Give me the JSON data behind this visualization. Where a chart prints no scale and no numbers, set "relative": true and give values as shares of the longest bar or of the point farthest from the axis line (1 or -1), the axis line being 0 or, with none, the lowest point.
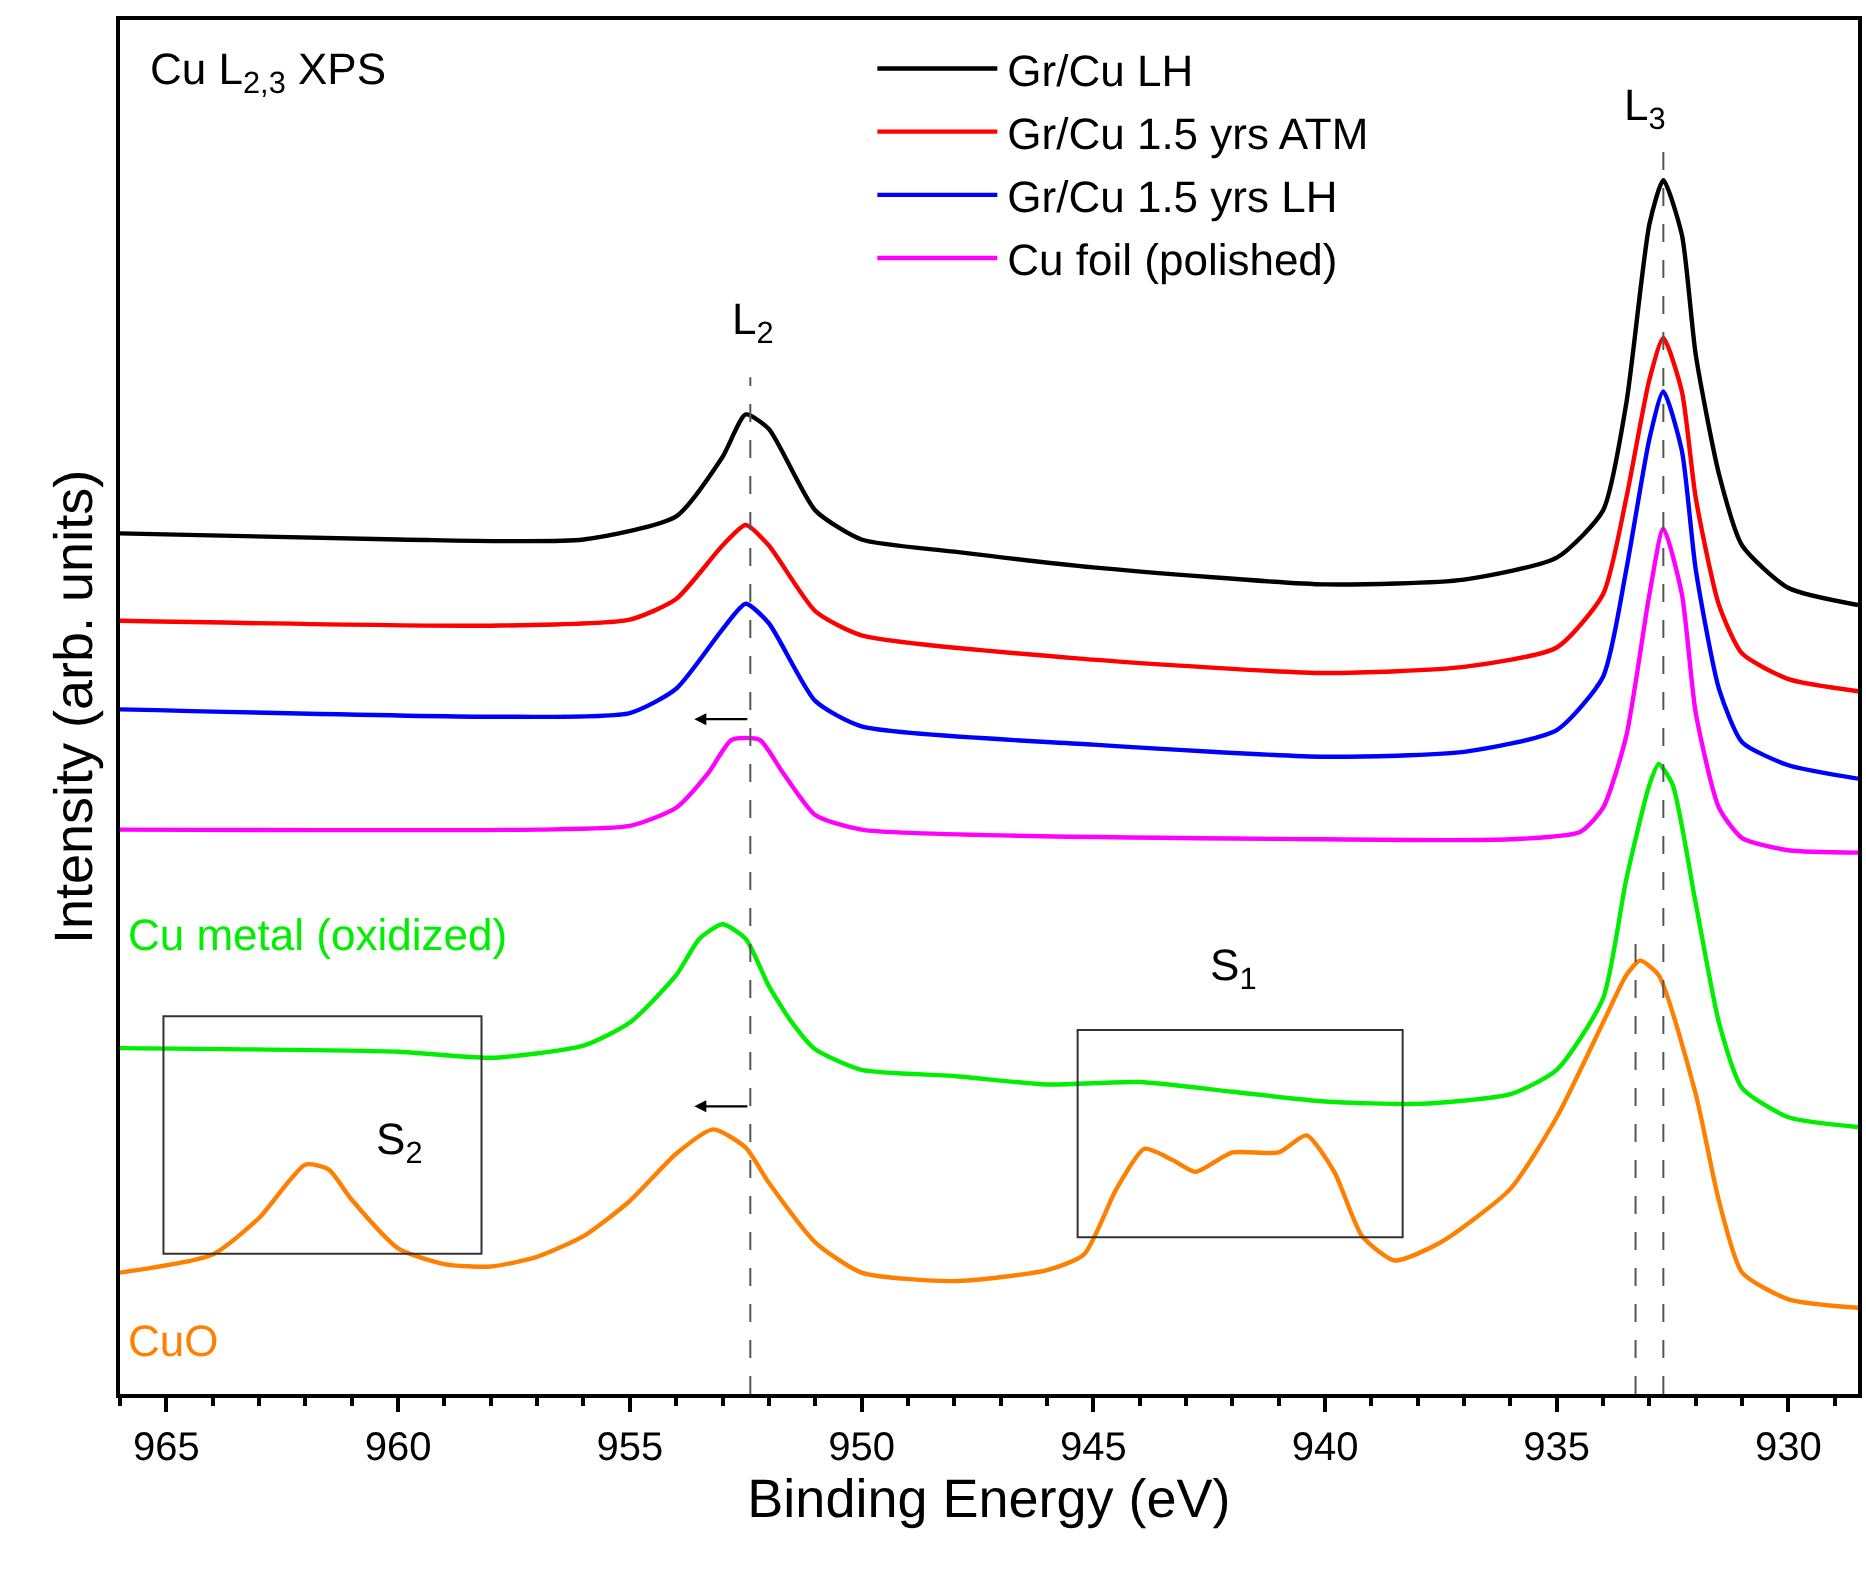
{
  "chart_data": {
    "type": "line",
    "relative": true,
    "xlabel": "Binding Energy (eV)",
    "ylabel": "Intensity (arb. units)",
    "xlim": [
      966,
      928.5
    ],
    "xticks": [
      965,
      960,
      955,
      950,
      945,
      940,
      935,
      930
    ],
    "tick_labels": "x",
    "legend": "top",
    "line_style": "solid",
    "marker": "none",
    "annotations": [
      "Cu L$_{2,3}$ XPS",
      "L$_{2}$",
      "L$_{3}$",
      "S$_{1}$",
      "S$_{2}$"
    ],
    "ref_lines": [
      {
        "axis": "x",
        "value": 952.4,
        "label": null,
        "color": "#555555",
        "line_style": "dashed"
      },
      {
        "axis": "x",
        "value": 932.7,
        "label": null,
        "color": "#555555",
        "line_style": "dashed"
      },
      {
        "axis": "x",
        "value": 933.3,
        "label": null,
        "color": "#555555",
        "line_style": "dashed"
      }
    ],
    "series": [
      {
        "name": "Gr/Cu LH",
        "color": "#000000",
        "x": [
          966,
          960,
          956,
          954,
          953,
          952.5,
          952,
          951,
          950,
          948,
          945,
          940,
          937,
          935,
          934,
          933.5,
          933,
          932.7,
          932.3,
          932,
          931.5,
          931,
          930,
          928.5
        ],
        "values": [
          0.709,
          0.704,
          0.704,
          0.723,
          0.772,
          0.807,
          0.795,
          0.728,
          0.704,
          0.694,
          0.681,
          0.667,
          0.671,
          0.689,
          0.728,
          0.816,
          0.964,
          1.0,
          0.955,
          0.856,
          0.758,
          0.699,
          0.664,
          0.65
        ]
      },
      {
        "name": "Gr/Cu 1.5 yrs ATM",
        "color": "#ff0000",
        "x": [
          966,
          958,
          955,
          954,
          953,
          952.5,
          952,
          951,
          950,
          945,
          940,
          937,
          935,
          934,
          933.5,
          933,
          932.7,
          932.3,
          932,
          931.5,
          931,
          930,
          928.5
        ],
        "values": [
          0.637,
          0.633,
          0.638,
          0.655,
          0.699,
          0.716,
          0.699,
          0.645,
          0.625,
          0.605,
          0.594,
          0.599,
          0.615,
          0.659,
          0.738,
          0.836,
          0.87,
          0.826,
          0.738,
          0.65,
          0.61,
          0.589,
          0.579
        ]
      },
      {
        "name": "Gr/Cu 1.5 yrs LH",
        "color": "#0000ff",
        "x": [
          966,
          958,
          955,
          954,
          953,
          952.5,
          952,
          951,
          950,
          945,
          940,
          937,
          935,
          934,
          933.5,
          933,
          932.7,
          932.3,
          932,
          931.5,
          931,
          930,
          928.5
        ],
        "values": [
          0.564,
          0.558,
          0.561,
          0.581,
          0.63,
          0.651,
          0.635,
          0.571,
          0.55,
          0.535,
          0.525,
          0.529,
          0.547,
          0.591,
          0.679,
          0.787,
          0.826,
          0.777,
          0.679,
          0.581,
          0.537,
          0.518,
          0.507
        ]
      },
      {
        "name": "Cu foil (polished)",
        "color": "#ff00ff",
        "x": [
          966,
          957,
          955,
          954,
          953.3,
          952.8,
          952.2,
          951.7,
          951,
          950,
          940,
          936,
          934.5,
          934,
          933.5,
          933,
          932.7,
          932.3,
          932,
          931.5,
          931,
          930,
          928.5
        ],
        "values": [
          0.465,
          0.465,
          0.468,
          0.483,
          0.512,
          0.539,
          0.539,
          0.512,
          0.477,
          0.465,
          0.457,
          0.457,
          0.463,
          0.483,
          0.542,
          0.659,
          0.713,
          0.659,
          0.561,
          0.483,
          0.458,
          0.448,
          0.446
        ]
      },
      {
        "name": "Cu metal (oxidized)",
        "color": "#00ee00",
        "x": [
          966,
          960,
          958,
          956,
          955,
          954,
          953.5,
          953,
          952.5,
          952,
          951.5,
          951,
          950,
          948,
          946,
          944,
          942,
          940,
          938,
          936,
          935,
          934,
          933.5,
          933,
          932.8,
          932.5,
          932,
          931.5,
          931,
          930,
          928.5
        ],
        "values": [
          0.285,
          0.282,
          0.277,
          0.287,
          0.306,
          0.345,
          0.375,
          0.387,
          0.375,
          0.336,
          0.306,
          0.284,
          0.267,
          0.262,
          0.255,
          0.257,
          0.249,
          0.241,
          0.239,
          0.247,
          0.267,
          0.326,
          0.424,
          0.502,
          0.519,
          0.502,
          0.404,
          0.306,
          0.252,
          0.228,
          0.22
        ]
      },
      {
        "name": "CuO",
        "color": "#ff8000",
        "x": [
          966,
          964,
          963,
          962,
          961.5,
          961,
          960,
          959,
          958,
          957,
          956,
          955,
          954,
          953.2,
          952.5,
          952,
          951,
          950,
          948,
          946,
          945.2,
          944.5,
          943.9,
          943.3,
          942.8,
          942,
          941,
          940.4,
          939.8,
          939.2,
          938.5,
          937.5,
          936,
          935,
          934,
          933.5,
          933.2,
          932.8,
          932,
          931.5,
          931,
          930,
          928.5
        ],
        "values": [
          0.1,
          0.115,
          0.145,
          0.189,
          0.185,
          0.16,
          0.12,
          0.107,
          0.105,
          0.113,
          0.13,
          0.159,
          0.198,
          0.218,
          0.203,
          0.174,
          0.125,
          0.1,
          0.093,
          0.102,
          0.115,
          0.169,
          0.202,
          0.193,
          0.183,
          0.199,
          0.199,
          0.213,
          0.183,
          0.13,
          0.11,
          0.125,
          0.169,
          0.228,
          0.306,
          0.345,
          0.357,
          0.345,
          0.247,
          0.159,
          0.1,
          0.078,
          0.071
        ]
      }
    ]
  }
}
